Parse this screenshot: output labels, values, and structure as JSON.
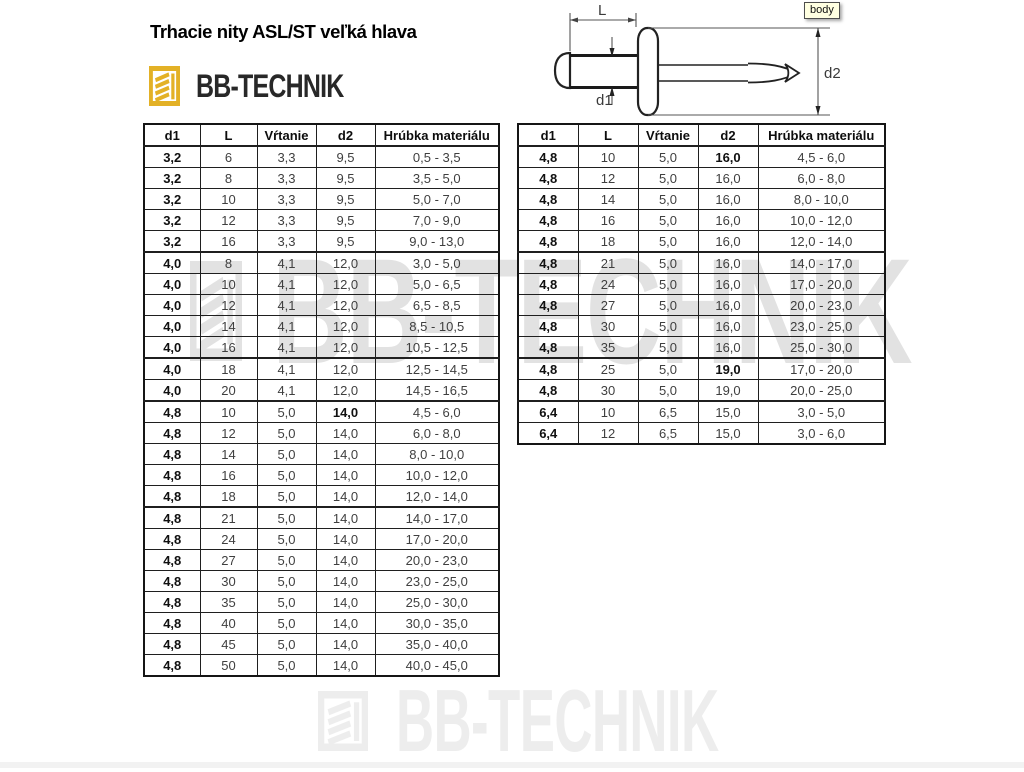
{
  "header": {
    "title": "Trhacie nity ASL/ST veľká hlava"
  },
  "brand": {
    "name": "BB-TECHNIK",
    "accent_color": "#E3B126",
    "text_color": "#282828"
  },
  "diagram": {
    "tooltip": "body",
    "labels": {
      "length": "L",
      "body_diameter": "d1",
      "head_diameter": "d2"
    }
  },
  "watermark": {
    "text": "BB-TECHNIK",
    "middle_color": "#e2e2e2",
    "bottom_color": "#ededed"
  },
  "tables": {
    "columns": [
      "d1",
      "L",
      "Vŕtanie",
      "d2",
      "Hrúbka materiálu"
    ],
    "left": {
      "rows": [
        [
          "3,2",
          "6",
          "3,3",
          "9,5",
          "0,5 - 3,5"
        ],
        [
          "3,2",
          "8",
          "3,3",
          "9,5",
          "3,5 - 5,0"
        ],
        [
          "3,2",
          "10",
          "3,3",
          "9,5",
          "5,0 - 7,0"
        ],
        [
          "3,2",
          "12",
          "3,3",
          "9,5",
          "7,0 - 9,0"
        ],
        [
          "3,2",
          "16",
          "3,3",
          "9,5",
          "9,0 - 13,0"
        ],
        [
          "4,0",
          "8",
          "4,1",
          "12,0",
          "3,0 - 5,0"
        ],
        [
          "4,0",
          "10",
          "4,1",
          "12,0",
          "5,0 - 6,5"
        ],
        [
          "4,0",
          "12",
          "4,1",
          "12,0",
          "6,5 - 8,5"
        ],
        [
          "4,0",
          "14",
          "4,1",
          "12,0",
          "8,5 - 10,5"
        ],
        [
          "4,0",
          "16",
          "4,1",
          "12,0",
          "10,5 - 12,5"
        ],
        [
          "4,0",
          "18",
          "4,1",
          "12,0",
          "12,5 - 14,5"
        ],
        [
          "4,0",
          "20",
          "4,1",
          "12,0",
          "14,5 - 16,5"
        ],
        [
          "4,8",
          "10",
          "5,0",
          "14,0",
          "4,5 - 6,0"
        ],
        [
          "4,8",
          "12",
          "5,0",
          "14,0",
          "6,0 - 8,0"
        ],
        [
          "4,8",
          "14",
          "5,0",
          "14,0",
          "8,0 - 10,0"
        ],
        [
          "4,8",
          "16",
          "5,0",
          "14,0",
          "10,0 - 12,0"
        ],
        [
          "4,8",
          "18",
          "5,0",
          "14,0",
          "12,0 - 14,0"
        ],
        [
          "4,8",
          "21",
          "5,0",
          "14,0",
          "14,0 - 17,0"
        ],
        [
          "4,8",
          "24",
          "5,0",
          "14,0",
          "17,0 - 20,0"
        ],
        [
          "4,8",
          "27",
          "5,0",
          "14,0",
          "20,0 - 23,0"
        ],
        [
          "4,8",
          "30",
          "5,0",
          "14,0",
          "23,0 - 25,0"
        ],
        [
          "4,8",
          "35",
          "5,0",
          "14,0",
          "25,0 - 30,0"
        ],
        [
          "4,8",
          "40",
          "5,0",
          "14,0",
          "30,0 - 35,0"
        ],
        [
          "4,8",
          "45",
          "5,0",
          "14,0",
          "35,0 - 40,0"
        ],
        [
          "4,8",
          "50",
          "5,0",
          "14,0",
          "40,0 - 45,0"
        ]
      ],
      "group_breaks_after": [
        4,
        9,
        11,
        16
      ],
      "bold_d2_rows": [
        12
      ]
    },
    "right": {
      "rows": [
        [
          "4,8",
          "10",
          "5,0",
          "16,0",
          "4,5 - 6,0"
        ],
        [
          "4,8",
          "12",
          "5,0",
          "16,0",
          "6,0 - 8,0"
        ],
        [
          "4,8",
          "14",
          "5,0",
          "16,0",
          "8,0 - 10,0"
        ],
        [
          "4,8",
          "16",
          "5,0",
          "16,0",
          "10,0 - 12,0"
        ],
        [
          "4,8",
          "18",
          "5,0",
          "16,0",
          "12,0 - 14,0"
        ],
        [
          "4,8",
          "21",
          "5,0",
          "16,0",
          "14,0 - 17,0"
        ],
        [
          "4,8",
          "24",
          "5,0",
          "16,0",
          "17,0 - 20,0"
        ],
        [
          "4,8",
          "27",
          "5,0",
          "16,0",
          "20,0 - 23,0"
        ],
        [
          "4,8",
          "30",
          "5,0",
          "16,0",
          "23,0 - 25,0"
        ],
        [
          "4,8",
          "35",
          "5,0",
          "16,0",
          "25,0 - 30,0"
        ],
        [
          "4,8",
          "25",
          "5,0",
          "19,0",
          "17,0 - 20,0"
        ],
        [
          "4,8",
          "30",
          "5,0",
          "19,0",
          "20,0 - 25,0"
        ],
        [
          "6,4",
          "10",
          "6,5",
          "15,0",
          "3,0 - 5,0"
        ],
        [
          "6,4",
          "12",
          "6,5",
          "15,0",
          "3,0 - 6,0"
        ]
      ],
      "group_breaks_after": [
        4,
        9,
        11
      ],
      "bold_d2_rows": [
        0,
        10
      ]
    }
  }
}
